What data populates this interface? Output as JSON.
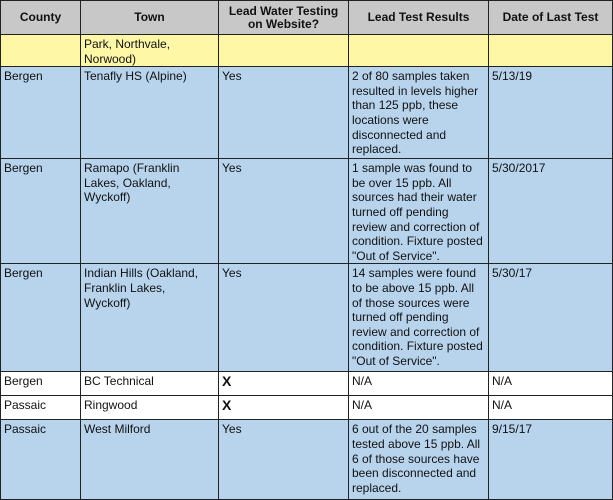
{
  "table": {
    "headers": [
      "County",
      "Town",
      "Lead Water Testing on Website?",
      "Lead Test Results",
      "Date of Last Test"
    ],
    "rows": [
      {
        "style": "yellow",
        "county": "",
        "town": "Park, Northvale, Norwood)",
        "website": "",
        "results": "",
        "date": ""
      },
      {
        "style": "blue",
        "county": "Bergen",
        "town": "Tenafly HS (Alpine)",
        "website": "Yes",
        "results": "2 of 80 samples taken resulted in levels higher than 125 ppb, these locations were disconnected and replaced.",
        "date": "5/13/19"
      },
      {
        "style": "blue",
        "county": "Bergen",
        "town": "Ramapo (Franklin Lakes, Oakland, Wyckoff)",
        "website": "Yes",
        "results": "1 sample was found to be over 15 ppb. All sources had their water turned off pending review and correction of condition. Fixture posted \"Out of Service\".",
        "date": "5/30/2017"
      },
      {
        "style": "blue",
        "county": "Bergen",
        "town": "Indian Hills (Oakland, Franklin Lakes, Wyckoff)",
        "website": "Yes",
        "results": "14 samples were found to be above 15 ppb. All of those sources were turned off pending review and correction of condition. Fixture posted \"Out of Service\".",
        "date": "5/30/17"
      },
      {
        "style": "white",
        "county": "Bergen",
        "town": "BC Technical",
        "website": "X",
        "results": "N/A",
        "date": "N/A"
      },
      {
        "style": "white",
        "county": "Passaic",
        "town": "Ringwood",
        "website": "X",
        "results": "N/A",
        "date": "N/A"
      },
      {
        "style": "blue",
        "county": "Passaic",
        "town": "West Milford",
        "website": "Yes",
        "results": "6 out of the 20 samples tested above 15 ppb. All 6 of those sources have been disconnected and replaced.",
        "date": "9/15/17"
      }
    ]
  },
  "colors": {
    "header": "#c8c8c8",
    "yellow": "#fdf7a6",
    "blue": "#b8d4ed"
  }
}
